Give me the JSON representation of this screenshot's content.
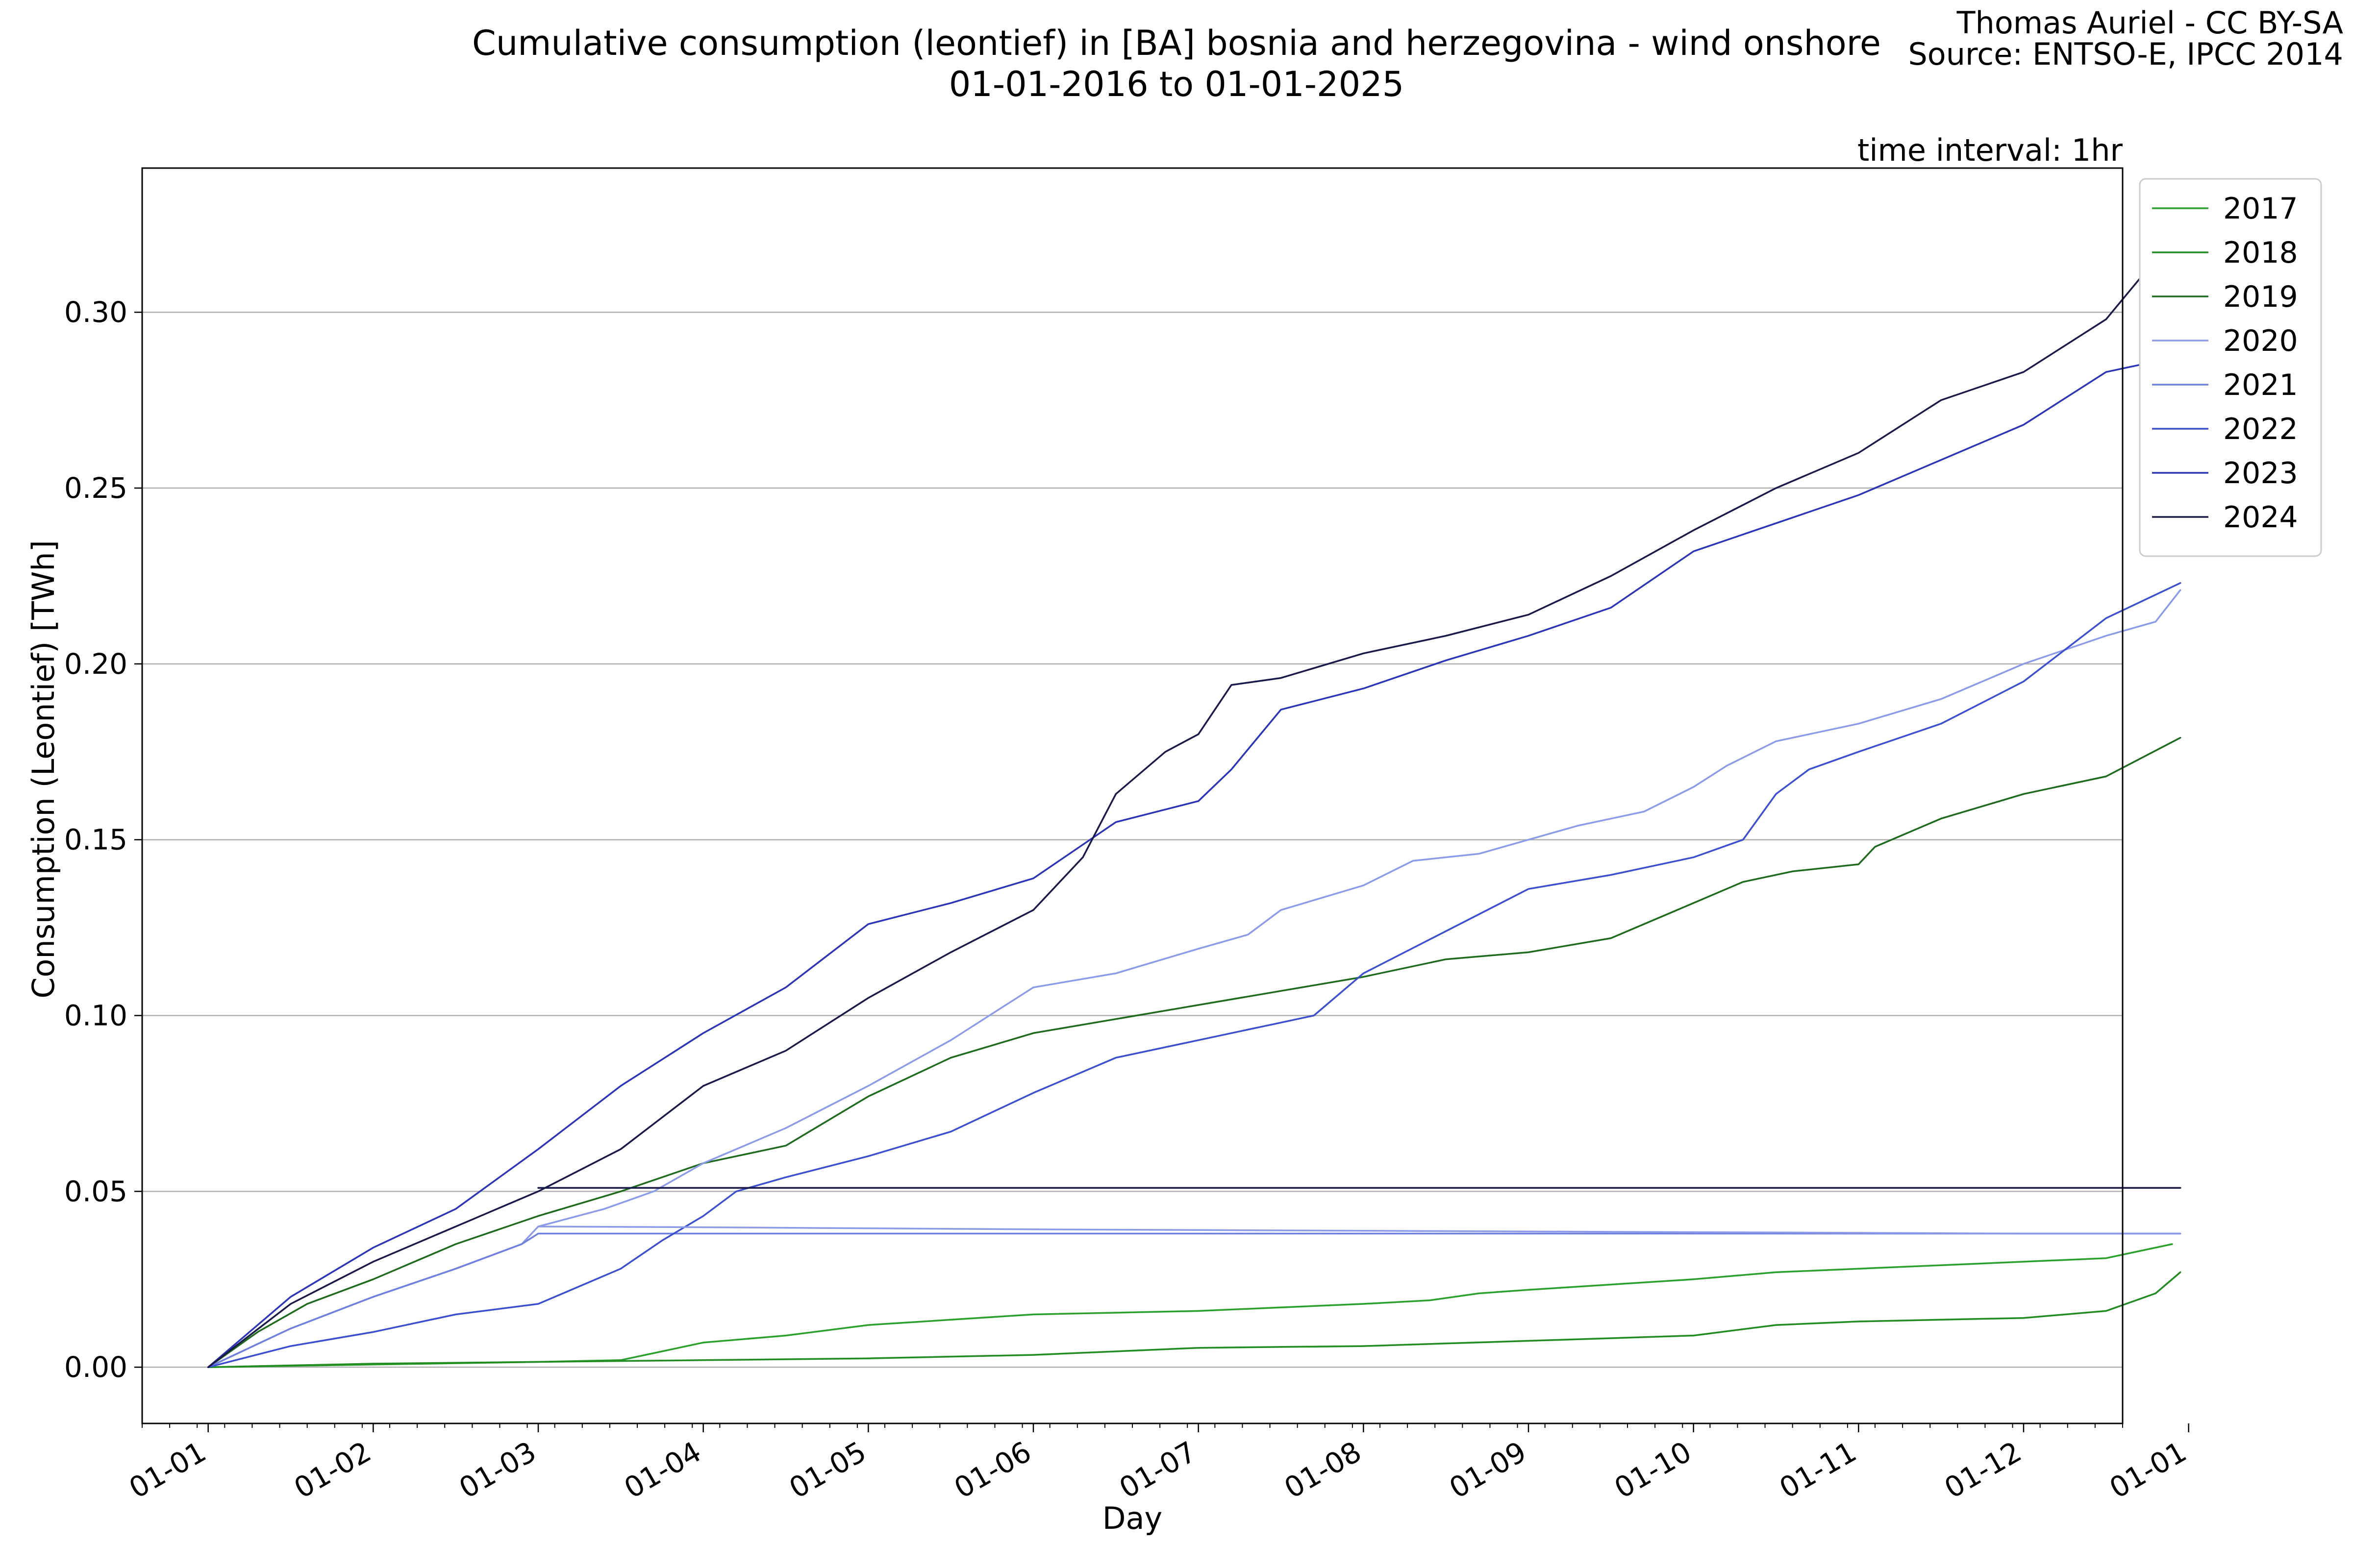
{
  "header": {
    "title_line1": "Cumulative consumption (leontief) in [BA] bosnia and herzegovina - wind onshore",
    "title_line2": "01-01-2016 to 01-01-2025",
    "credit_line1": "Thomas Auriel - CC BY-SA",
    "credit_line2": "Source: ENTSO-E, IPCC 2014",
    "interval_note": "time interval: 1hr"
  },
  "chart_data": {
    "type": "line",
    "xlabel": "Day",
    "ylabel": "Consumption (Leontief) [TWh]",
    "x_unit": "month",
    "xlim": [
      0.6,
      12.6
    ],
    "ylim": [
      -0.016,
      0.341
    ],
    "yticks": [
      0.0,
      0.05,
      0.1,
      0.15,
      0.2,
      0.25,
      0.3
    ],
    "ytick_labels": [
      "0.00",
      "0.05",
      "0.10",
      "0.15",
      "0.20",
      "0.25",
      "0.30"
    ],
    "xticks": [
      1,
      2,
      3,
      4,
      5,
      6,
      7,
      8,
      9,
      10,
      11,
      12,
      13
    ],
    "xtick_labels": [
      "01-01",
      "01-02",
      "01-03",
      "01-04",
      "01-05",
      "01-06",
      "01-07",
      "01-08",
      "01-09",
      "01-10",
      "01-11",
      "01-12",
      "01-01"
    ],
    "grid": "horizontal",
    "legend_position": "outside-right-top",
    "series": [
      {
        "name": "2017",
        "color": "#2ca02c",
        "x": [
          1.0,
          3.0,
          3.5,
          3.7,
          4.0,
          4.5,
          5.0,
          6.0,
          7.0,
          8.0,
          8.4,
          8.7,
          9.0,
          10.0,
          10.5,
          11.0,
          11.5,
          12.0,
          12.5,
          12.9
        ],
        "y": [
          0.0,
          0.0015,
          0.002,
          0.004,
          0.007,
          0.009,
          0.012,
          0.015,
          0.016,
          0.018,
          0.019,
          0.021,
          0.022,
          0.025,
          0.027,
          0.028,
          0.029,
          0.03,
          0.031,
          0.035
        ]
      },
      {
        "name": "2018",
        "color": "#228b22",
        "x": [
          1.0,
          2.0,
          3.0,
          4.0,
          5.0,
          6.0,
          7.0,
          8.0,
          9.0,
          10.0,
          10.5,
          11.0,
          11.5,
          12.0,
          12.5,
          12.8,
          12.95
        ],
        "y": [
          0.0,
          0.001,
          0.0015,
          0.002,
          0.0025,
          0.0035,
          0.0055,
          0.006,
          0.0075,
          0.009,
          0.012,
          0.013,
          0.0135,
          0.014,
          0.016,
          0.021,
          0.027
        ]
      },
      {
        "name": "2019",
        "color": "#1e6b1e",
        "x": [
          1.0,
          1.3,
          1.6,
          2.0,
          2.5,
          3.0,
          3.5,
          4.0,
          4.5,
          5.0,
          5.5,
          6.0,
          6.5,
          7.0,
          7.5,
          8.0,
          8.5,
          9.0,
          9.5,
          10.0,
          10.3,
          10.6,
          11.0,
          11.1,
          11.5,
          12.0,
          12.5,
          12.95
        ],
        "y": [
          0.0,
          0.01,
          0.018,
          0.025,
          0.035,
          0.043,
          0.05,
          0.058,
          0.063,
          0.077,
          0.088,
          0.095,
          0.099,
          0.103,
          0.107,
          0.111,
          0.116,
          0.118,
          0.122,
          0.132,
          0.138,
          0.141,
          0.143,
          0.148,
          0.156,
          0.163,
          0.168,
          0.179
        ]
      },
      {
        "name": "2020",
        "color": "#8c9be8",
        "x": [
          1.0,
          1.5,
          2.0,
          2.5,
          2.9,
          3.0,
          3.4,
          3.7,
          4.0,
          4.5,
          5.0,
          5.5,
          6.0,
          6.5,
          7.0,
          7.3,
          7.5,
          8.0,
          8.3,
          8.7,
          9.0,
          9.3,
          9.7,
          10.0,
          10.2,
          10.5,
          11.0,
          11.5,
          12.0,
          12.5,
          12.8,
          12.95
        ],
        "y": [
          0.0,
          0.011,
          0.02,
          0.028,
          0.035,
          0.04,
          0.045,
          0.05,
          0.058,
          0.068,
          0.08,
          0.093,
          0.108,
          0.112,
          0.119,
          0.123,
          0.13,
          0.137,
          0.144,
          0.146,
          0.15,
          0.154,
          0.158,
          0.165,
          0.171,
          0.178,
          0.183,
          0.19,
          0.2,
          0.208,
          0.212,
          0.221
        ]
      },
      {
        "name": "2021",
        "color": "#6f80df",
        "x": [
          1.0,
          1.5,
          2.0,
          2.5,
          2.9,
          3.0,
          4.0,
          5.0,
          6.0,
          7.0,
          8.0,
          9.0,
          10.0,
          11.0,
          12.0,
          12.95
        ],
        "y": [
          0.0,
          0.011,
          0.02,
          0.028,
          0.035,
          0.038,
          0.038,
          0.038,
          0.038,
          0.038,
          0.038,
          0.038,
          0.038,
          0.038,
          0.038,
          0.038
        ]
      },
      {
        "name": "2022",
        "color": "#3b4fd0",
        "x": [
          1.0,
          1.5,
          2.0,
          2.5,
          3.0,
          3.5,
          3.75,
          4.0,
          4.2,
          4.5,
          5.0,
          5.5,
          6.0,
          6.5,
          7.0,
          7.5,
          7.7,
          8.0,
          8.5,
          9.0,
          9.5,
          10.0,
          10.3,
          10.5,
          10.7,
          11.0,
          11.5,
          12.0,
          12.5,
          12.95
        ],
        "y": [
          0.0,
          0.006,
          0.01,
          0.015,
          0.018,
          0.028,
          0.036,
          0.043,
          0.05,
          0.054,
          0.06,
          0.067,
          0.078,
          0.088,
          0.093,
          0.098,
          0.1,
          0.112,
          0.124,
          0.136,
          0.14,
          0.145,
          0.15,
          0.163,
          0.17,
          0.175,
          0.183,
          0.195,
          0.213,
          0.223
        ]
      },
      {
        "name": "2023",
        "color": "#2c35b8",
        "x": [
          1.0,
          1.5,
          2.0,
          2.5,
          3.0,
          3.5,
          4.0,
          4.5,
          5.0,
          5.5,
          6.0,
          6.5,
          7.0,
          7.2,
          7.5,
          8.0,
          8.5,
          9.0,
          9.5,
          10.0,
          10.5,
          11.0,
          11.5,
          12.0,
          12.5,
          12.8,
          12.95
        ],
        "y": [
          0.0,
          0.02,
          0.034,
          0.045,
          0.062,
          0.08,
          0.095,
          0.108,
          0.126,
          0.132,
          0.139,
          0.155,
          0.161,
          0.17,
          0.187,
          0.193,
          0.201,
          0.208,
          0.216,
          0.232,
          0.24,
          0.248,
          0.258,
          0.268,
          0.283,
          0.286,
          0.292
        ]
      },
      {
        "name": "2024",
        "color": "#1a1a4a",
        "x": [
          1.0,
          1.5,
          2.0,
          2.5,
          3.0,
          3.5,
          4.0,
          4.5,
          5.0,
          5.5,
          6.0,
          6.3,
          6.5,
          6.8,
          7.0,
          7.2,
          7.5,
          8.0,
          8.5,
          9.0,
          9.5,
          10.0,
          10.5,
          11.0,
          11.5,
          12.0,
          12.5,
          12.8,
          12.95
        ],
        "y": [
          0.0,
          0.018,
          0.03,
          0.04,
          0.05,
          0.062,
          0.08,
          0.09,
          0.105,
          0.118,
          0.13,
          0.145,
          0.163,
          0.175,
          0.18,
          0.194,
          0.196,
          0.203,
          0.208,
          0.214,
          0.225,
          0.238,
          0.25,
          0.26,
          0.275,
          0.283,
          0.298,
          0.315,
          0.324
        ]
      },
      {
        "name": "",
        "color": "#1a1a4a",
        "x": [
          3.0,
          4.0,
          5.0,
          6.0,
          7.0,
          8.0,
          9.0,
          10.0,
          11.0,
          12.0,
          12.95
        ],
        "y": [
          0.051,
          0.051,
          0.051,
          0.051,
          0.051,
          0.051,
          0.051,
          0.051,
          0.051,
          0.051,
          0.051
        ]
      },
      {
        "name": "",
        "color": "#8c9be8",
        "x": [
          3.0,
          4.0,
          5.0,
          6.0,
          7.0,
          8.0,
          9.0,
          10.0,
          11.0,
          12.0,
          12.95
        ],
        "y": [
          0.04,
          0.0398,
          0.0395,
          0.0392,
          0.039,
          0.0388,
          0.0386,
          0.0384,
          0.0382,
          0.038,
          0.038
        ]
      }
    ]
  }
}
